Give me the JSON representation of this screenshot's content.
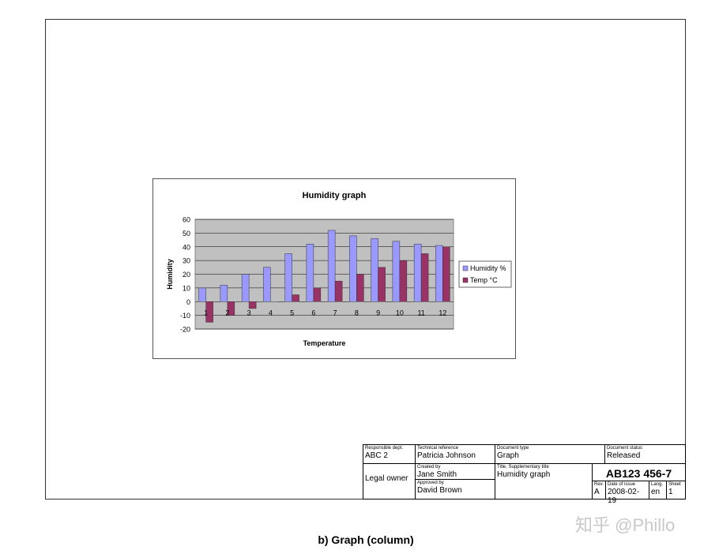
{
  "caption": "b)  Graph (column)",
  "watermark": "知乎 @Phillo",
  "title_block": {
    "responsible_dept": {
      "label": "Responsible dept.",
      "value": "ABC 2"
    },
    "technical_reference": {
      "label": "Technical reference",
      "value": "Patricia Johnson"
    },
    "document_type": {
      "label": "Document type",
      "value": "Graph"
    },
    "document_status": {
      "label": "Document status",
      "value": "Released"
    },
    "legal_owner": "Legal owner",
    "created_by": {
      "label": "Created by",
      "value": "Jane Smith"
    },
    "approved_by": {
      "label": "Approved by",
      "value": "David Brown"
    },
    "title": {
      "label": "Title, Supplementary title",
      "value": "Humidity graph"
    },
    "document_number": "AB123 456-7",
    "rev": {
      "label": "Rev.",
      "value": "A"
    },
    "date_of_issue": {
      "label": "Date of issue",
      "value": "2008-02-19"
    },
    "lang": {
      "label": "Lang.",
      "value": "en"
    },
    "sheet": {
      "label": "Sheet",
      "value": "1"
    }
  },
  "chart_data": {
    "type": "bar",
    "title": "Humidity graph",
    "xlabel": "Temperature",
    "ylabel": "Humidity",
    "categories": [
      "1",
      "2",
      "3",
      "4",
      "5",
      "6",
      "7",
      "8",
      "9",
      "10",
      "11",
      "12"
    ],
    "series": [
      {
        "name": "Humidity %",
        "color": "#9999ff",
        "values": [
          10,
          12,
          20,
          25,
          35,
          42,
          52,
          48,
          46,
          44,
          42,
          41
        ]
      },
      {
        "name": "Temp °C",
        "color": "#993366",
        "values": [
          -15,
          -10,
          -5,
          0,
          5,
          10,
          15,
          20,
          25,
          30,
          35,
          40
        ]
      }
    ],
    "ylim": [
      -20,
      60
    ],
    "yticks": [
      "60",
      "50",
      "40",
      "30",
      "20",
      "10",
      "0",
      "-10",
      "-20"
    ],
    "grid": true,
    "plot_background": "#c0c0c0",
    "legend": "right"
  }
}
